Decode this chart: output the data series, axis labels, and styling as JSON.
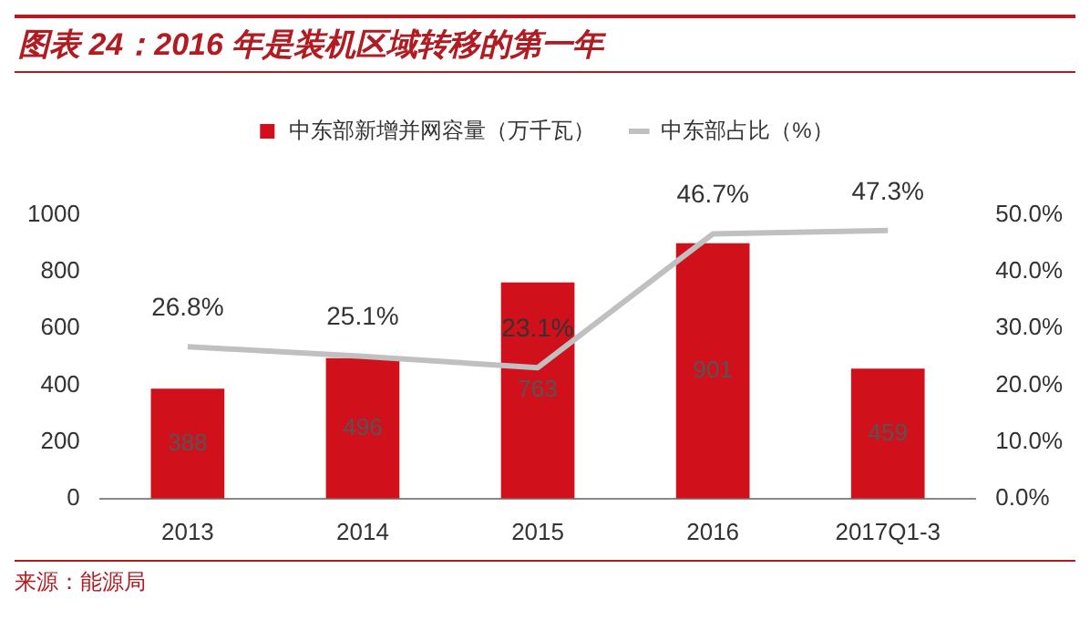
{
  "chart_data": {
    "type": "bar",
    "title": "图表 24：2016 年是装机区域转移的第一年",
    "categories": [
      "2013",
      "2014",
      "2015",
      "2016",
      "2017Q1-3"
    ],
    "series": [
      {
        "name": "中东部新增并网容量（万千瓦）",
        "color": "#d0101b",
        "values": [
          388,
          496,
          763,
          901,
          459
        ]
      },
      {
        "name": "中东部占比（%）",
        "type": "line",
        "axis": "y2",
        "color": "#c0c0c0",
        "values": [
          26.8,
          25.1,
          23.1,
          46.7,
          47.3
        ],
        "value_labels": [
          "26.8%",
          "25.1%",
          "23.1%",
          "46.7%",
          "47.3%"
        ]
      }
    ],
    "ylim": [
      0,
      1000
    ],
    "yticks": [
      0,
      200,
      400,
      600,
      800,
      1000
    ],
    "y2lim": [
      0,
      50
    ],
    "y2ticks": [
      {
        "value": 0,
        "label": "0.0%"
      },
      {
        "value": 10,
        "label": "10.0%"
      },
      {
        "value": 20,
        "label": "20.0%"
      },
      {
        "value": 30,
        "label": "30.0%"
      },
      {
        "value": 40,
        "label": "40.0%"
      },
      {
        "value": 50,
        "label": "50.0%"
      }
    ],
    "data_labels": true,
    "legend": "top",
    "grid": false,
    "marker": "none",
    "annotations": [
      "来源：能源局"
    ]
  }
}
